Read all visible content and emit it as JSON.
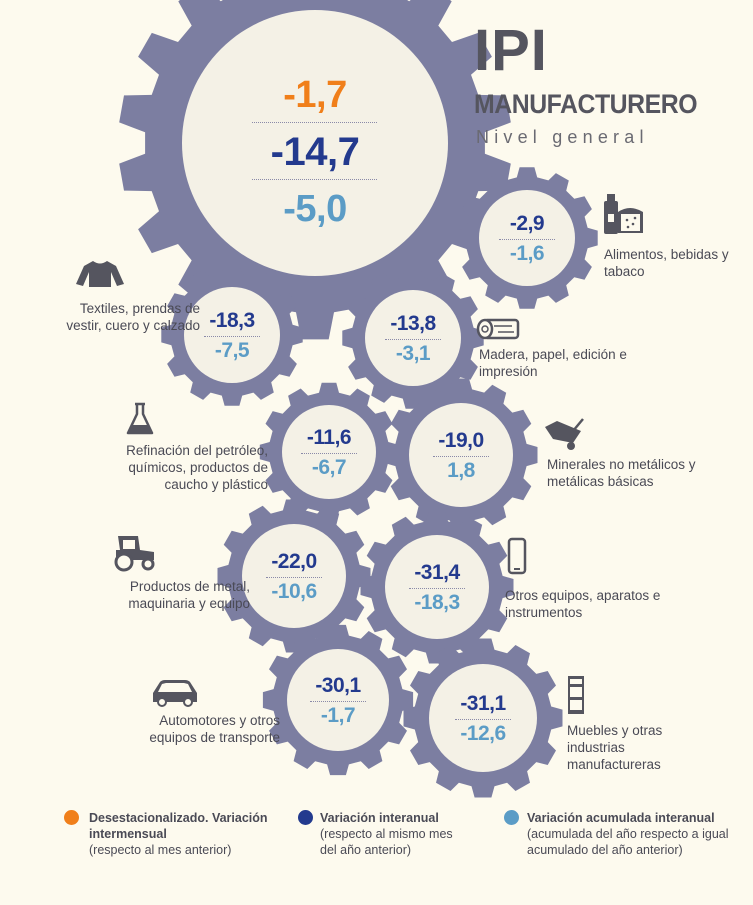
{
  "title": "IPI",
  "subtitle": "MANUFACTURERO",
  "subheading": "Nivel general",
  "colors": {
    "orange": "#f07f1a",
    "navy": "#233a8e",
    "lightblue": "#5b9cc6",
    "gear": "#7c7ea1",
    "gear_inner": "#f4f1e6"
  },
  "main": {
    "mensual": "-1,7",
    "interanual": "-14,7",
    "acumulada": "-5,0"
  },
  "sectors": [
    {
      "icon": "food-icon",
      "label": "Alimentos, bebidas y tabaco",
      "interanual": "-2,9",
      "acumulada": "-1,6"
    },
    {
      "icon": "shirt-icon",
      "label": "Textiles, prendas de vestir, cuero y calzado",
      "interanual": "-18,3",
      "acumulada": "-7,5"
    },
    {
      "icon": "log-icon",
      "label": "Madera, papel, edición e impresión",
      "interanual": "-13,8",
      "acumulada": "-3,1"
    },
    {
      "icon": "flask-icon",
      "label": "Refinación del petróleo, químicos, productos de caucho y plástico",
      "interanual": "-11,6",
      "acumulada": "-6,7"
    },
    {
      "icon": "wheelbarrow-icon",
      "label": "Minerales no metálicos y metálicas básicas",
      "interanual": "-19,0",
      "acumulada": "1,8"
    },
    {
      "icon": "tractor-icon",
      "label": "Productos de metal, maquinaria y equipo",
      "interanual": "-22,0",
      "acumulada": "-10,6"
    },
    {
      "icon": "phone-icon",
      "label": "Otros equipos, aparatos e instrumentos",
      "interanual": "-31,4",
      "acumulada": "-18,3"
    },
    {
      "icon": "car-icon",
      "label": "Automotores y otros equipos de transporte",
      "interanual": "-30,1",
      "acumulada": "-1,7"
    },
    {
      "icon": "cabinet-icon",
      "label": "Muebles y otras industrias manufactureras",
      "interanual": "-31,1",
      "acumulada": "-12,6"
    }
  ],
  "legend": [
    {
      "title": "Desestacionalizado. Variación intermensual",
      "note": "(respecto al mes anterior)",
      "color": "#f07f1a"
    },
    {
      "title": "Variación interanual",
      "note": "(respecto al mismo mes del año anterior)",
      "color": "#233a8e"
    },
    {
      "title": "Variación acumulada interanual",
      "note": "(acumulada del año respecto a igual acumulado del año anterior)",
      "color": "#5b9cc6"
    }
  ]
}
